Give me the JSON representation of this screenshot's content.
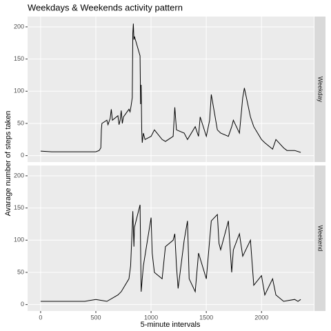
{
  "chart_data": {
    "type": "line",
    "title": "Weekdays & Weekends activity pattern",
    "x_label": "5-minute intervals",
    "y_label": "Avarage number of steps taken",
    "color": "#000000",
    "grid": true,
    "xlim": [
      -118,
      2473
    ],
    "xticks": [
      0,
      500,
      1000,
      1500,
      2000
    ],
    "ylim": [
      -10,
      216
    ],
    "yticks": [
      0,
      50,
      100,
      150,
      200
    ],
    "panels": [
      {
        "name": "Weekday",
        "x": [
          0,
          100,
          200,
          300,
          400,
          500,
          530,
          545,
          550,
          555,
          600,
          610,
          630,
          640,
          650,
          700,
          710,
          720,
          730,
          740,
          750,
          800,
          810,
          820,
          830,
          835,
          840,
          845,
          850,
          900,
          905,
          910,
          915,
          920,
          930,
          945,
          1000,
          1030,
          1100,
          1130,
          1200,
          1215,
          1230,
          1300,
          1330,
          1400,
          1430,
          1445,
          1500,
          1530,
          1545,
          1600,
          1630,
          1700,
          1730,
          1745,
          1800,
          1830,
          1845,
          1900,
          1930,
          2000,
          2030,
          2100,
          2130,
          2200,
          2230,
          2300,
          2355
        ],
        "values": [
          7,
          6,
          6,
          6,
          6,
          6,
          8,
          12,
          40,
          50,
          55,
          48,
          58,
          72,
          55,
          62,
          48,
          55,
          70,
          50,
          60,
          72,
          68,
          78,
          90,
          190,
          205,
          180,
          185,
          155,
          80,
          110,
          40,
          20,
          35,
          25,
          30,
          40,
          25,
          22,
          30,
          75,
          40,
          35,
          25,
          45,
          30,
          60,
          30,
          55,
          95,
          40,
          35,
          30,
          45,
          55,
          35,
          90,
          105,
          60,
          45,
          25,
          20,
          10,
          25,
          12,
          8,
          8,
          5
        ]
      },
      {
        "name": "Weekend",
        "x": [
          0,
          200,
          400,
          500,
          600,
          700,
          730,
          800,
          815,
          830,
          835,
          845,
          850,
          900,
          910,
          930,
          1000,
          1010,
          1030,
          1100,
          1130,
          1200,
          1215,
          1230,
          1245,
          1300,
          1330,
          1345,
          1400,
          1430,
          1500,
          1545,
          1600,
          1615,
          1630,
          1700,
          1730,
          1745,
          1800,
          1830,
          1900,
          1930,
          2000,
          2030,
          2100,
          2130,
          2200,
          2300,
          2330,
          2355
        ],
        "values": [
          5,
          5,
          5,
          8,
          5,
          15,
          20,
          40,
          60,
          120,
          145,
          90,
          120,
          155,
          20,
          60,
          135,
          80,
          50,
          40,
          90,
          100,
          110,
          60,
          25,
          100,
          130,
          40,
          20,
          80,
          40,
          130,
          140,
          95,
          85,
          130,
          50,
          85,
          110,
          75,
          100,
          30,
          45,
          15,
          40,
          15,
          5,
          8,
          5,
          8
        ]
      }
    ]
  }
}
